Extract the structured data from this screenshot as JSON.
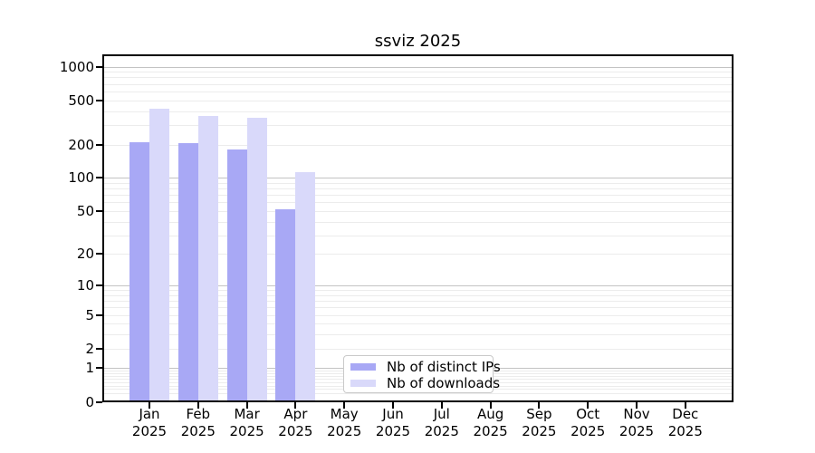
{
  "chart_data": {
    "type": "bar",
    "title": "ssviz 2025",
    "categories": [
      "Jan 2025",
      "Feb 2025",
      "Mar 2025",
      "Apr 2025",
      "May 2025",
      "Jun 2025",
      "Jul 2025",
      "Aug 2025",
      "Sep 2025",
      "Oct 2025",
      "Nov 2025",
      "Dec 2025"
    ],
    "x_tick_months": [
      "Jan",
      "Feb",
      "Mar",
      "Apr",
      "May",
      "Jun",
      "Jul",
      "Aug",
      "Sep",
      "Oct",
      "Nov",
      "Dec"
    ],
    "x_tick_year": "2025",
    "series": [
      {
        "name": "Nb of distinct IPs",
        "color": "#a8a8f5",
        "values": [
          205,
          200,
          175,
          50,
          0,
          0,
          0,
          0,
          0,
          0,
          0,
          0
        ]
      },
      {
        "name": "Nb of downloads",
        "color": "#d9d9fa",
        "values": [
          410,
          350,
          340,
          110,
          0,
          0,
          0,
          0,
          0,
          0,
          0,
          0
        ]
      }
    ],
    "y_axis": {
      "scale": "symlog",
      "tick_labels": [
        "0",
        "1",
        "2",
        "5",
        "10",
        "20",
        "50",
        "100",
        "200",
        "500",
        "1000"
      ],
      "tick_values": [
        0,
        1,
        2,
        5,
        10,
        20,
        50,
        100,
        200,
        500,
        1000
      ],
      "major_grid_values": [
        1,
        10,
        100,
        1000
      ],
      "ylim": [
        0,
        1000
      ]
    },
    "grid": "on",
    "legend": {
      "position": "lower center",
      "entries": [
        "Nb of distinct IPs",
        "Nb of downloads"
      ]
    },
    "colors": {
      "spine": "#000000",
      "grid_minor": "#ececec",
      "grid_major": "#c3c3c3",
      "background": "#ffffff"
    }
  }
}
